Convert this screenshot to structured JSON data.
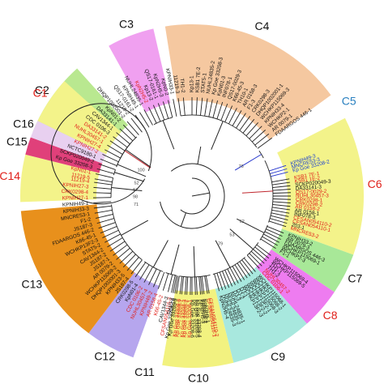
{
  "colors": {
    "default_text": "#111111",
    "highlight_text": "#e0201a",
    "blue_text": "#1a3fd0",
    "branch": "#222222",
    "branch_red": "#c0262d",
    "branch_blue": "#2233cc"
  },
  "clades": [
    {
      "label": "C2",
      "fill": "#b9e890",
      "label_color": "#111111",
      "a0": -68,
      "a1": -42
    },
    {
      "label": "C3",
      "fill": "#f0a0f0",
      "label_color": "#111111",
      "a0": -29,
      "a1": -13
    },
    {
      "label": "C4",
      "fill": "#f5c8a0",
      "label_color": "#111111",
      "a0": -9,
      "a1": 54
    },
    {
      "label": "C5",
      "fill": "#ffffff",
      "label_color": "#2a80c0",
      "a0": 55,
      "a1": 63
    },
    {
      "label": "C6",
      "fill": "#f3f38a",
      "label_color": "#e0201a",
      "a0": 63,
      "a1": 110
    },
    {
      "label": "C7",
      "fill": "#a8e898",
      "label_color": "#111111",
      "a0": 110,
      "a1": 124
    },
    {
      "label": "C8",
      "fill": "#ee7cf0",
      "label_color": "#e0201a",
      "a0": 124,
      "a1": 138
    },
    {
      "label": "C9",
      "fill": "#a8e8de",
      "label_color": "#111111",
      "a0": 138,
      "a1": 166
    },
    {
      "label": "C10",
      "fill": "#f2f280",
      "label_color": "#111111",
      "a0": 166,
      "a1": 190
    },
    {
      "label": "C11",
      "fill": "#ffffff",
      "label_color": "#111111",
      "a0": 190,
      "a1": 200
    },
    {
      "label": "C12",
      "fill": "#b6a6ee",
      "label_color": "#111111",
      "a0": 200,
      "a1": 217
    },
    {
      "label": "C13",
      "fill": "#e8901c",
      "label_color": "#111111",
      "a0": 217,
      "a1": 265
    },
    {
      "label": "C14",
      "fill": "#f3f38a",
      "label_color": "#e0201a",
      "a0": 268,
      "a1": 284
    },
    {
      "label": "C15",
      "fill": "#e0407a",
      "label_color": "#111111",
      "a0": 284,
      "a1": 290
    },
    {
      "label": "C16",
      "fill": "#e8d0f0",
      "label_color": "#111111",
      "a0": 290,
      "a1": 296
    },
    {
      "label": "C1",
      "fill": "#f3f38a",
      "label_color": "#e0201a",
      "a0": 296,
      "a1": 312
    }
  ],
  "leaves": [
    {
      "label": "CFSAN054110-3",
      "color": "highlight",
      "angle": 192
    },
    {
      "label": "CFSAN054110-2",
      "color": "highlight",
      "angle": 170
    },
    {
      "label": "CFSAN054110-1",
      "color": "highlight",
      "angle": 171
    },
    {
      "label": "KpN2H5-1",
      "color": "default",
      "angle": 173
    },
    {
      "label": "KpN2H5-2",
      "color": "default",
      "angle": 174
    },
    {
      "label": "KpN2H5-3",
      "color": "default",
      "angle": 175
    },
    {
      "label": "Kp Goe 33208-4",
      "color": "default",
      "angle": 177
    },
    {
      "label": "Kp Goe 33208-5",
      "color": "default",
      "angle": 178
    },
    {
      "label": "Kp Goe 33208-6",
      "color": "default",
      "angle": 180
    },
    {
      "label": "Kp Goe 33208-1",
      "color": "highlight",
      "angle": 181
    },
    {
      "label": "Kp Goe 33208-2",
      "color": "highlight",
      "angle": 183
    },
    {
      "label": "Kp Goe 33208-3",
      "color": "highlight",
      "angle": 184
    },
    {
      "label": "Kp Goe 33208-7",
      "color": "highlight",
      "angle": 186
    },
    {
      "label": "Kp Goe 33208-8",
      "color": "highlight",
      "angle": 187
    },
    {
      "label": "Kp Goe 33208-9",
      "color": "default",
      "angle": 189
    },
    {
      "label": "Kp Goe 33208-10",
      "color": "default",
      "angle": 190
    },
    {
      "label": "WCHKP115068-1",
      "color": "default",
      "angle": 140
    },
    {
      "label": "WCHKP115068-2",
      "color": "default",
      "angle": 142
    },
    {
      "label": "WCHKP115068-3",
      "color": "default",
      "angle": 144
    },
    {
      "label": "WCHKP13F2-1",
      "color": "default",
      "angle": 146
    },
    {
      "label": "WCHKP13F2-2",
      "color": "default",
      "angle": 148
    },
    {
      "label": "WCHKP13F2-3",
      "color": "default",
      "angle": 150
    },
    {
      "label": "DJ-1",
      "color": "default",
      "angle": 152
    },
    {
      "label": "DJ-2",
      "color": "default",
      "angle": 154
    },
    {
      "label": "DJ-3",
      "color": "default",
      "angle": 156
    },
    {
      "label": "NUHL24835-1",
      "color": "default",
      "angle": 158
    },
    {
      "label": "NUHL24835-2",
      "color": "default",
      "angle": 160
    },
    {
      "label": "NUHL24835-3",
      "color": "default",
      "angle": 162
    },
    {
      "label": "KpN2H5-4",
      "color": "default",
      "angle": 164
    },
    {
      "label": "WCHKP115069-4",
      "color": "default",
      "angle": 127
    },
    {
      "label": "WCHKP115069-5",
      "color": "default",
      "angle": 129
    },
    {
      "label": "TH1-1",
      "color": "default",
      "angle": 131
    },
    {
      "label": "TH1-2",
      "color": "default",
      "angle": 133
    },
    {
      "label": "NUHL30457-2",
      "color": "highlight",
      "angle": 135
    },
    {
      "label": "CDC 0106-1",
      "color": "highlight",
      "angle": 137
    },
    {
      "label": "KPNIH33-2",
      "color": "default",
      "angle": 112
    },
    {
      "label": "AR 0079-3",
      "color": "default",
      "angle": 114
    },
    {
      "label": "FDAARGOS 446-3",
      "color": "default",
      "angle": 116
    },
    {
      "label": "WCHKP115069-1",
      "color": "default",
      "angle": 118
    },
    {
      "label": "WCHKP2-3",
      "color": "default",
      "angle": 120
    },
    {
      "label": "F1-1",
      "color": "default",
      "angle": 122
    },
    {
      "label": "MNCRE53-2",
      "color": "highlight",
      "angle": 108
    },
    {
      "label": "203-1",
      "color": "default",
      "angle": 106
    },
    {
      "label": "CFSAN054110-1",
      "color": "highlight",
      "angle": 104
    },
    {
      "label": "CFSAN054110-2",
      "color": "highlight",
      "angle": 102
    },
    {
      "label": "INF078-3",
      "color": "default",
      "angle": 100
    },
    {
      "label": "AR 0158-1",
      "color": "default",
      "angle": 98
    },
    {
      "label": "AR 0158-2",
      "color": "highlight",
      "angle": 96
    },
    {
      "label": "CRK0298-2",
      "color": "highlight",
      "angle": 94
    },
    {
      "label": "CRK0298-1",
      "color": "highlight",
      "angle": 92
    },
    {
      "label": "NUHL30457-3",
      "color": "highlight",
      "angle": 90
    },
    {
      "label": "QS17-0029-2",
      "color": "highlight",
      "angle": 88
    },
    {
      "label": "DA33141-3",
      "color": "default",
      "angle": 86
    },
    {
      "label": "SCKP020049-3",
      "color": "default",
      "angle": 84
    },
    {
      "label": "KSB1 1E-2",
      "color": "highlight",
      "angle": 82
    },
    {
      "label": "KSB1 7E-1",
      "color": "highlight",
      "angle": 80
    },
    {
      "label": "Kp Goe 33208-2",
      "color": "blue",
      "angle": 76
    },
    {
      "label": "MNCRE53-3",
      "color": "blue",
      "angle": 74
    },
    {
      "label": "KPNIH49-3",
      "color": "blue",
      "angle": 72
    },
    {
      "label": "FDAARGOS 446-1",
      "color": "default",
      "angle": 54
    },
    {
      "label": "AR 0079-1",
      "color": "default",
      "angle": 51
    },
    {
      "label": "WCHKP2-1",
      "color": "default",
      "angle": 48
    },
    {
      "label": "KPNIH33-4",
      "color": "default",
      "angle": 45
    },
    {
      "label": "WCHKP115069-3",
      "color": "default",
      "angle": 42
    },
    {
      "label": "DHQP1002001-1",
      "color": "default",
      "angle": 39
    },
    {
      "label": "CRK0298-3",
      "color": "default",
      "angle": 36
    },
    {
      "label": "F1-3",
      "color": "default",
      "angle": 33
    },
    {
      "label": "AR 0158-3",
      "color": "default",
      "angle": 30
    },
    {
      "label": "TH10-1",
      "color": "default",
      "angle": 27
    },
    {
      "label": "K66-45-3",
      "color": "default",
      "angle": 24
    },
    {
      "label": "QS17-0029-3",
      "color": "default",
      "angle": 21
    },
    {
      "label": "INF078-1",
      "color": "default",
      "angle": 18
    },
    {
      "label": "KpN01-3",
      "color": "default",
      "angle": 15
    },
    {
      "label": "Kp Goe 33208-3",
      "color": "default",
      "angle": 12
    },
    {
      "label": "NUHL24835-2",
      "color": "default",
      "angle": 9
    },
    {
      "label": "STAT5-1",
      "color": "default",
      "angle": 6
    },
    {
      "label": "KSB1 7E-2",
      "color": "default",
      "angle": 3
    },
    {
      "label": "Kp13-1",
      "color": "default",
      "angle": 0
    },
    {
      "label": "TH1-2",
      "color": "default",
      "angle": -5
    },
    {
      "label": "11219-3",
      "color": "default",
      "angle": -8
    },
    {
      "label": "KPNIH33-1",
      "color": "default",
      "angle": -11
    },
    {
      "label": "KpN0-2",
      "color": "default",
      "angle": -14
    },
    {
      "label": "KpN2H5-3",
      "color": "default",
      "angle": -17
    },
    {
      "label": "QS17-0161-1",
      "color": "default",
      "angle": -20
    },
    {
      "label": "Kp13-2",
      "color": "default",
      "angle": -23
    },
    {
      "label": "KpN2H5-2",
      "color": "highlight",
      "angle": -26
    },
    {
      "label": "NUHL24835-1",
      "color": "default",
      "angle": -29
    },
    {
      "label": "KPNIH49-1",
      "color": "default",
      "angle": -32
    },
    {
      "label": "QS17-0161-2",
      "color": "default",
      "angle": -35
    },
    {
      "label": "11219-2",
      "color": "default",
      "angle": -38
    },
    {
      "label": "DHQP1002001-2",
      "color": "default",
      "angle": -41
    },
    {
      "label": "KpN01-2",
      "color": "default",
      "angle": -44
    },
    {
      "label": "DA33141-1",
      "color": "default",
      "angle": -47
    },
    {
      "label": "CAV1344-1",
      "color": "default",
      "angle": -50
    },
    {
      "label": "CDC 0106-3",
      "color": "default",
      "angle": -53
    },
    {
      "label": "DA33141-2",
      "color": "highlight",
      "angle": -56
    },
    {
      "label": "NUHL30457-1",
      "color": "highlight",
      "angle": -59
    },
    {
      "label": "KPNIH27-4",
      "color": "highlight",
      "angle": -62
    },
    {
      "label": "KPNIH27-2",
      "color": "highlight",
      "angle": -65
    },
    {
      "label": "NCTC9180-1",
      "color": "default",
      "angle": -68
    },
    {
      "label": "SCKP020049-2",
      "color": "default",
      "angle": -71
    },
    {
      "label": "Kp Goe 33208-3",
      "color": "default",
      "angle": -74
    },
    {
      "label": "KpN01-1",
      "color": "highlight",
      "angle": -77
    },
    {
      "label": "11219-5",
      "color": "highlight",
      "angle": -80
    },
    {
      "label": "11219-4",
      "color": "highlight",
      "angle": -82
    },
    {
      "label": "KPNIH27-3",
      "color": "highlight",
      "angle": -85
    },
    {
      "label": "CRK0298-4",
      "color": "highlight",
      "angle": -88
    },
    {
      "label": "KPNIH27-1",
      "color": "highlight",
      "angle": -91
    },
    {
      "label": "KPNIH49-1",
      "color": "default",
      "angle": -94
    },
    {
      "label": "KPNIH33-3",
      "color": "default",
      "angle": -97
    },
    {
      "label": "MNCRE53-1",
      "color": "default",
      "angle": -100
    },
    {
      "label": "F1-2",
      "color": "default",
      "angle": -103
    },
    {
      "label": "JS187-3",
      "color": "default",
      "angle": -106
    },
    {
      "label": "FDAARGOS 446-2",
      "color": "default",
      "angle": -109
    },
    {
      "label": "K66-45-1",
      "color": "default",
      "angle": -112
    },
    {
      "label": "WCHKP13F2-3",
      "color": "default",
      "angle": -115
    },
    {
      "label": "STAT5-2",
      "color": "default",
      "angle": -118
    },
    {
      "label": "CAV1344-2",
      "color": "default",
      "angle": -121
    },
    {
      "label": "JS187-2",
      "color": "default",
      "angle": -124
    },
    {
      "label": "JS187-1",
      "color": "default",
      "angle": -127
    },
    {
      "label": "AR 0079-2",
      "color": "default",
      "angle": -130
    },
    {
      "label": "WCHKP115069-2",
      "color": "default",
      "angle": -133
    },
    {
      "label": "DHQP1002001-3",
      "color": "default",
      "angle": -136
    },
    {
      "label": "KPNIH33-5",
      "color": "default",
      "angle": -139
    },
    {
      "label": "JS187-4",
      "color": "default",
      "angle": -142
    },
    {
      "label": "CRK0298-5",
      "color": "default",
      "angle": -145
    },
    {
      "label": "KpN01-4",
      "color": "default",
      "angle": -148
    },
    {
      "label": "CDC 0106-2",
      "color": "highlight",
      "angle": -151
    },
    {
      "label": "NUHL30457-4",
      "color": "highlight",
      "angle": -154
    },
    {
      "label": "KPNIH49-2",
      "color": "highlight",
      "angle": -157
    },
    {
      "label": "AR 0158-4",
      "color": "highlight",
      "angle": -160
    },
    {
      "label": "K66-45-2",
      "color": "highlight",
      "angle": -163
    },
    {
      "label": "CAV1344-3",
      "color": "default",
      "angle": -166
    },
    {
      "label": "TH10-2",
      "color": "default",
      "angle": -169
    }
  ],
  "bootstrap_values": [
    {
      "text": "100",
      "angle": 296
    },
    {
      "text": "52",
      "angle": 282
    },
    {
      "text": "57",
      "angle": 275
    },
    {
      "text": "98",
      "angle": 268
    },
    {
      "text": "71",
      "angle": 260
    },
    {
      "text": "76",
      "angle": 60
    },
    {
      "text": "62",
      "angle": 118
    },
    {
      "text": "53",
      "angle": 135
    },
    {
      "text": "79",
      "angle": 150
    }
  ]
}
